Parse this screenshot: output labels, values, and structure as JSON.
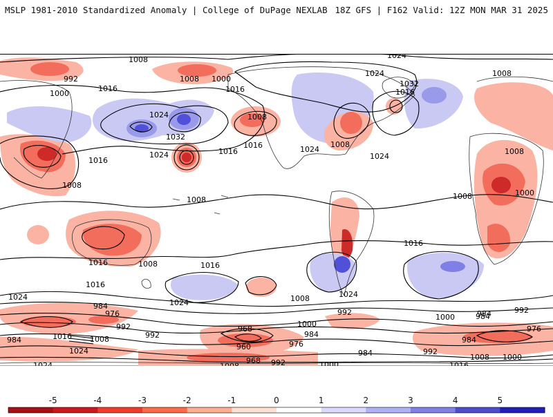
{
  "header": {
    "left": "MSLP 1981-2010 Standardized Anomaly | College of DuPage NEXLAB",
    "right": "18Z GFS | F162 Valid: 12Z MON MAR 31 2025"
  },
  "colorbar": {
    "ticks": [
      "-5",
      "-4",
      "-3",
      "-2",
      "-1",
      "0",
      "1",
      "2",
      "3",
      "4",
      "5"
    ],
    "colors": [
      "#a50f15",
      "#cb181d",
      "#ef3b2c",
      "#fb6a4a",
      "#fcae91",
      "#fee0d2",
      "#ffffff",
      "#d9d9ff",
      "#b0b0f5",
      "#7f7fe6",
      "#4c4ccc",
      "#1f1fb3"
    ]
  },
  "palette": {
    "neg_strong": "#cf2a2a",
    "neg_mid": "#f26d5b",
    "neg_weak": "#fbb4a4",
    "pos_weak": "#c9c9f4",
    "pos_mid": "#9a9aeb",
    "pos_strong": "#5050d8",
    "land": "#333333",
    "isobar": "#000000"
  },
  "isobar_labels": [
    {
      "text": "1008"
    },
    {
      "text": "992"
    },
    {
      "text": "1000"
    },
    {
      "text": "1016"
    },
    {
      "text": "1024"
    },
    {
      "text": "1032"
    },
    {
      "text": "1024"
    },
    {
      "text": "1016"
    },
    {
      "text": "1008"
    },
    {
      "text": "1000"
    },
    {
      "text": "1016"
    },
    {
      "text": "1024"
    },
    {
      "text": "1008"
    },
    {
      "text": "1016"
    },
    {
      "text": "1024"
    },
    {
      "text": "1032"
    },
    {
      "text": "1016"
    },
    {
      "text": "1024"
    },
    {
      "text": "1008"
    },
    {
      "text": "1024"
    },
    {
      "text": "1016"
    },
    {
      "text": "1008"
    },
    {
      "text": "1000"
    },
    {
      "text": "1008"
    },
    {
      "text": "1008"
    },
    {
      "text": "1008"
    },
    {
      "text": "1016"
    },
    {
      "text": "1016"
    },
    {
      "text": "1008"
    },
    {
      "text": "1016"
    },
    {
      "text": "1016"
    },
    {
      "text": "1024"
    },
    {
      "text": "1016"
    },
    {
      "text": "1024"
    },
    {
      "text": "1024"
    },
    {
      "text": "1008"
    },
    {
      "text": "1008"
    },
    {
      "text": "992"
    },
    {
      "text": "1000"
    },
    {
      "text": "984"
    },
    {
      "text": "976"
    },
    {
      "text": "992"
    },
    {
      "text": "984"
    },
    {
      "text": "1016"
    },
    {
      "text": "1008"
    },
    {
      "text": "1024"
    },
    {
      "text": "1024"
    },
    {
      "text": "968"
    },
    {
      "text": "960"
    },
    {
      "text": "976"
    },
    {
      "text": "968"
    },
    {
      "text": "992"
    },
    {
      "text": "1000"
    },
    {
      "text": "1008"
    },
    {
      "text": "1016"
    },
    {
      "text": "984"
    },
    {
      "text": "992"
    },
    {
      "text": "984"
    },
    {
      "text": "976"
    },
    {
      "text": "984"
    },
    {
      "text": "1000"
    },
    {
      "text": "1008"
    },
    {
      "text": "1016"
    },
    {
      "text": "992"
    },
    {
      "text": "984"
    },
    {
      "text": "1000"
    },
    {
      "text": "984"
    },
    {
      "text": "992"
    }
  ]
}
